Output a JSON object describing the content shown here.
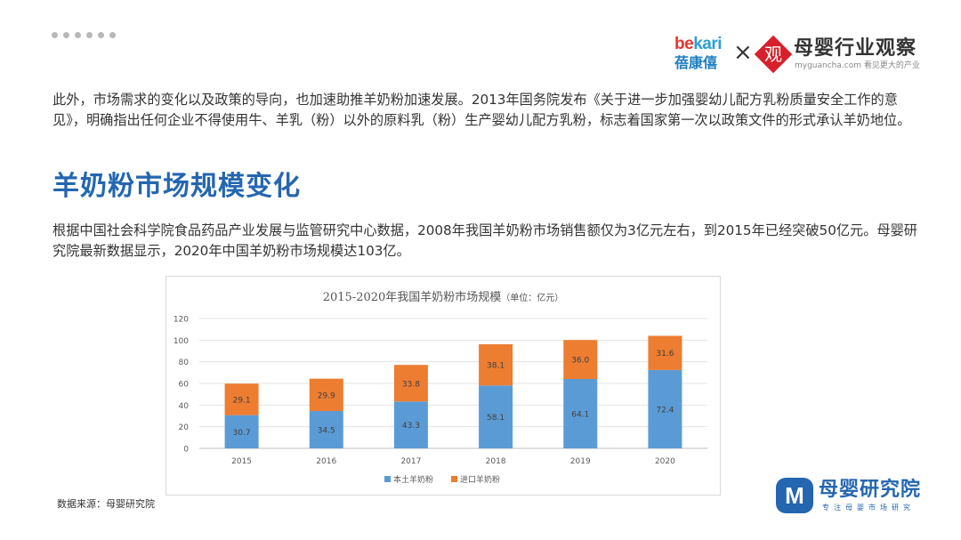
{
  "header": {
    "bekari_logo_text": "bekari",
    "bekari_cn": "蓓康僖",
    "times_symbol": "×",
    "myxy_badge": "观",
    "myxy_title": "母婴行业观察",
    "myxy_subtitle": "myguancha.com 看见更大的产业"
  },
  "paragraph1": "此外，市场需求的变化以及政策的导向，也加速助推羊奶粉加速发展。2013年国务院发布《关于进一步加强婴幼儿配方乳粉质量安全工作的意见》，明确指出任何企业不得使用牛、羊乳（粉）以外的原料乳（粉）生产婴幼儿配方乳粉，标志着国家第一次以政策文件的形式承认羊奶地位。",
  "section_heading": "羊奶粉市场规模变化",
  "paragraph2": "根据中国社会科学院食品药品产业发展与监管研究中心数据，2008年我国羊奶粉市场销售额仅为3亿元左右，到2015年已经突破50亿元。母婴研究院最新数据显示，2020年中国羊奶粉市场规模达103亿。",
  "chart_data": {
    "type": "bar",
    "stacked": true,
    "title": "2015-2020年我国羊奶粉市场规模",
    "title_unit": "（单位：亿元）",
    "categories": [
      "2015",
      "2016",
      "2017",
      "2018",
      "2019",
      "2020"
    ],
    "series": [
      {
        "name": "本土羊奶粉",
        "values": [
          30.7,
          34.5,
          43.3,
          58.1,
          64.1,
          72.4
        ],
        "color": "#5b9bd5"
      },
      {
        "name": "进口羊奶粉",
        "values": [
          29.1,
          29.9,
          33.8,
          38.1,
          36.0,
          31.6
        ],
        "color": "#ed7d31"
      }
    ],
    "yticks": [
      "0",
      "20",
      "40",
      "60",
      "80",
      "100",
      "120"
    ],
    "ylim": [
      0,
      120
    ],
    "grid": true,
    "legend_position": "bottom"
  },
  "source_note": "数据来源：母婴研究院",
  "footer_logo": {
    "icon_letter": "M",
    "title": "母婴研究院",
    "subtitle": "专注母婴市场研究"
  }
}
